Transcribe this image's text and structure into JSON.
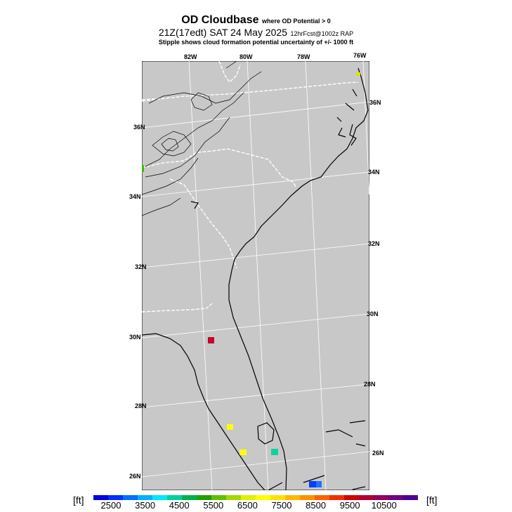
{
  "title": {
    "main": "OD Cloudbase",
    "main_note": "where OD Potential > 0",
    "time_main": "21Z(17edt) SAT 24 May 2025",
    "time_note": "12hrFcst@1002z RAP",
    "subtitle": "Stipple shows cloud formation potential uncertainty of +/- 1000 ft"
  },
  "map": {
    "background_color": "#c8c8c8",
    "top_lon_labels": [
      "82W",
      "80W",
      "78W",
      "76W"
    ],
    "left_lat_labels": [
      "36N",
      "34N",
      "32N",
      "30N",
      "28N",
      "26N"
    ],
    "right_lat_labels": [
      "36N",
      "34N",
      "32N",
      "30N",
      "28N",
      "26N"
    ],
    "spots": [
      {
        "color": "#e0e000",
        "level": "7000"
      },
      {
        "color": "#40c000",
        "level": "5500"
      },
      {
        "color": "#c80028",
        "level": "10000"
      },
      {
        "color": "#ffff00",
        "level": "7000"
      },
      {
        "color": "#ffff00",
        "level": "7000"
      },
      {
        "color": "#10d0a0",
        "level": "4500"
      },
      {
        "color": "#0040ff",
        "level": "3000"
      },
      {
        "color": "#2070ff",
        "level": "3000"
      }
    ]
  },
  "colorbar": {
    "unit_left": "[ft]",
    "unit_right": "[ft]",
    "colors": [
      "#0000e0",
      "#0030ff",
      "#0070ff",
      "#00b0ff",
      "#00e8ff",
      "#00d0a0",
      "#00b050",
      "#20a000",
      "#60c000",
      "#a0d800",
      "#e0f000",
      "#ffff00",
      "#ffe000",
      "#ffb800",
      "#ff9000",
      "#ff6000",
      "#f03000",
      "#d00000",
      "#b00030",
      "#900060",
      "#700080",
      "#500090"
    ],
    "tick_labels": [
      "2500",
      "3500",
      "4500",
      "5500",
      "6500",
      "7500",
      "8500",
      "9500",
      "10500"
    ]
  }
}
